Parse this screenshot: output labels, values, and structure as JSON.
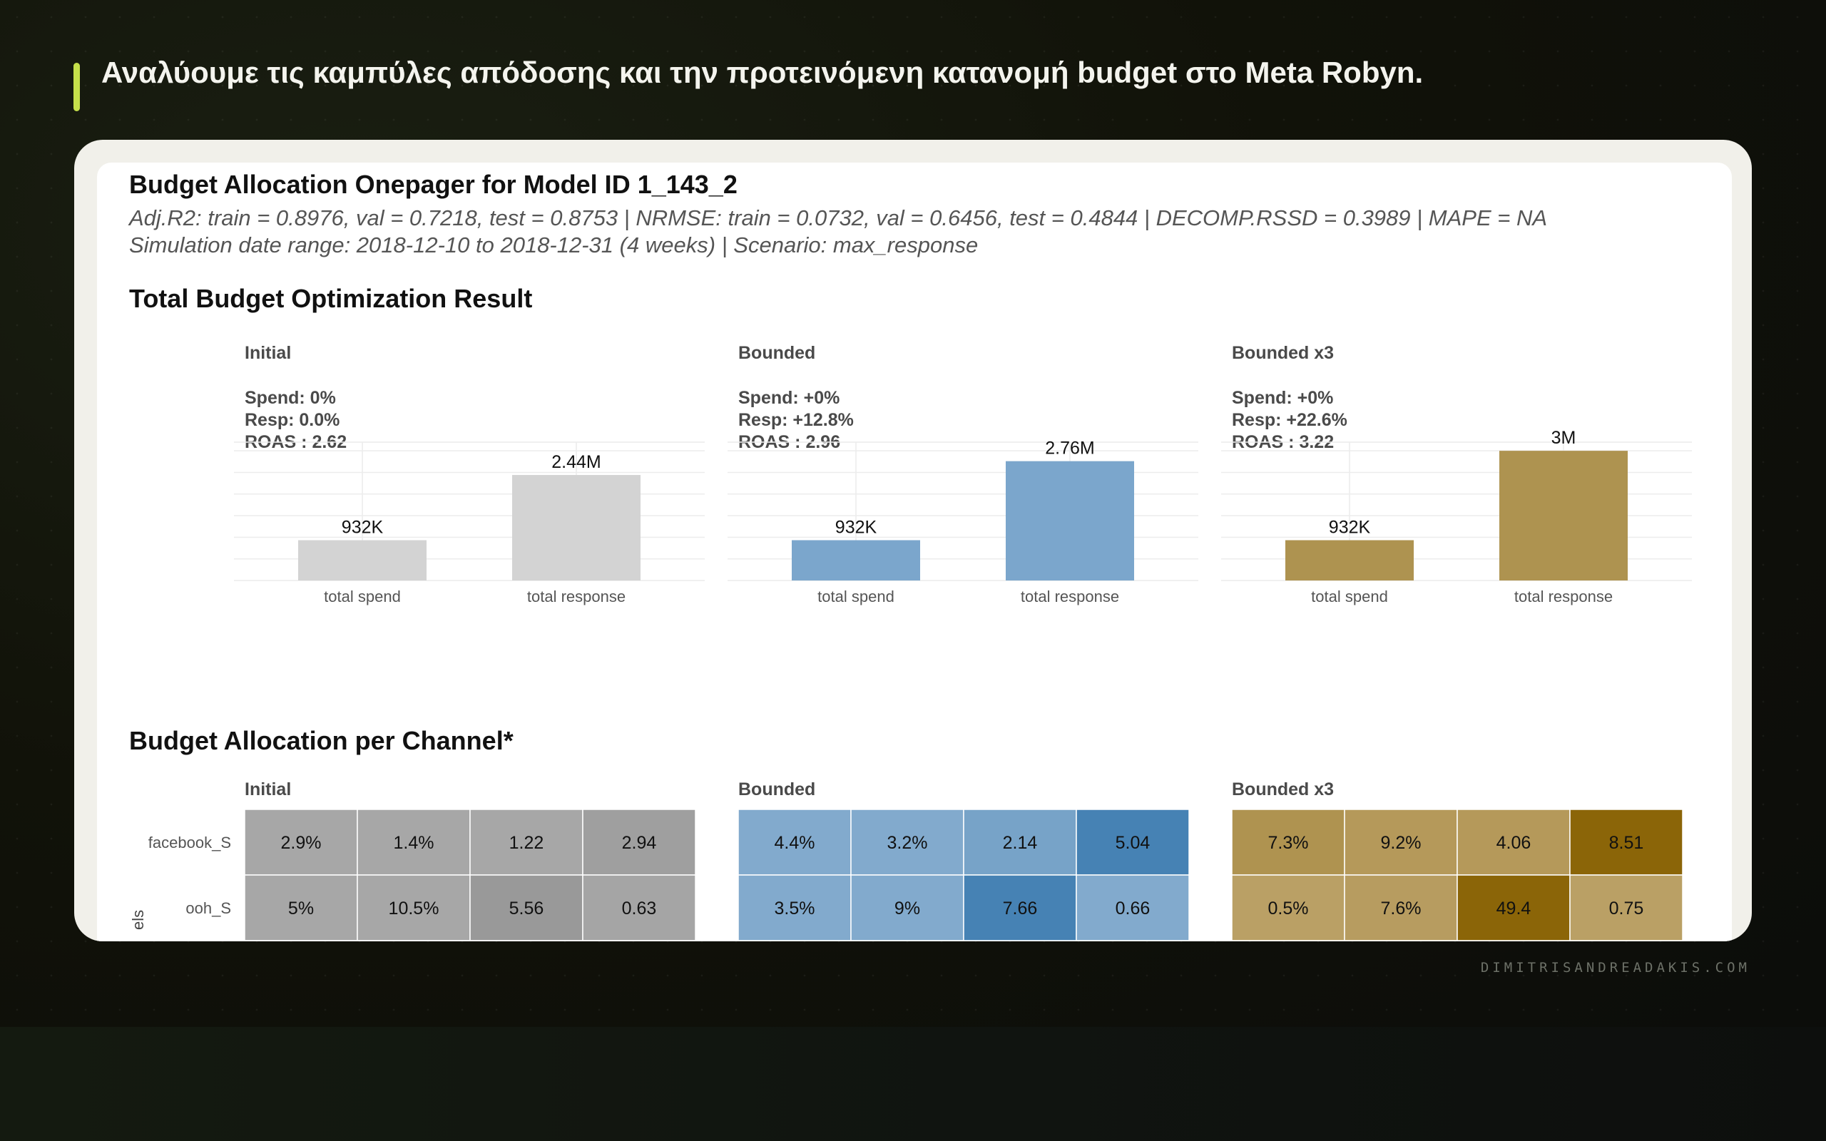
{
  "headline": "Αναλύουμε τις καμπύλες απόδοσης και την προτεινόμενη κατανομή budget στο Meta Robyn.",
  "footer": "DIMITRISANDREADAKIS.COM",
  "colors": {
    "accent": "#c5e04a",
    "initial": "#d3d3d3",
    "bounded": "#7ba6cc",
    "bounded_x3": "#ae9350"
  },
  "onepager": {
    "title": "Budget Allocation Onepager for Model ID 1_143_2",
    "subtitle_1": "Adj.R2: train = 0.8976, val = 0.7218, test = 0.8753 | NRMSE: train = 0.0732, val = 0.6456, test = 0.4844 | DECOMP.RSSD = 0.3989 | MAPE = NA",
    "subtitle_2": "Simulation date range: 2018-12-10 to 2018-12-31 (4 weeks) | Scenario: max_response",
    "section_1": "Total Budget Optimization Result",
    "section_2": "Budget Allocation per Channel*",
    "y_axis_fragment": "els"
  },
  "chart_data": [
    {
      "type": "bar",
      "title": "Total Budget Optimization Result",
      "categories": [
        "total spend",
        "total response"
      ],
      "ylim": [
        0,
        3200000
      ],
      "grid": true,
      "panels": [
        {
          "name": "Initial",
          "values": [
            932000,
            2440000
          ],
          "labels": [
            "932K",
            "2.44M"
          ],
          "stats": [
            "Spend: 0%",
            "Resp: 0.0%",
            "ROAS : 2.62"
          ],
          "color": "#d3d3d3"
        },
        {
          "name": "Bounded",
          "values": [
            932000,
            2760000
          ],
          "labels": [
            "932K",
            "2.76M"
          ],
          "stats": [
            "Spend: +0%",
            "Resp: +12.8%",
            "ROAS : 2.96"
          ],
          "color": "#7ba6cc"
        },
        {
          "name": "Bounded x3",
          "values": [
            932000,
            3000000
          ],
          "labels": [
            "932K",
            "3M"
          ],
          "stats": [
            "Spend: +0%",
            "Resp: +22.6%",
            "ROAS : 3.22"
          ],
          "color": "#ae9350"
        }
      ]
    },
    {
      "type": "heatmap",
      "title": "Budget Allocation per Channel*",
      "rows": [
        "facebook_S",
        "ooh_S"
      ],
      "panels": [
        {
          "name": "Initial",
          "cells": [
            [
              "2.9%",
              "1.4%",
              "1.22",
              "2.94"
            ],
            [
              "5%",
              "10.5%",
              "5.56",
              "0.63"
            ]
          ],
          "shades": [
            [
              0.35,
              0.35,
              0.35,
              0.55
            ],
            [
              0.35,
              0.35,
              0.7,
              0.4
            ]
          ],
          "light": "#b4b4b4",
          "dark": "#8e8e8e"
        },
        {
          "name": "Bounded",
          "cells": [
            [
              "4.4%",
              "3.2%",
              "2.14",
              "5.04"
            ],
            [
              "3.5%",
              "9%",
              "7.66",
              "0.66"
            ]
          ],
          "shades": [
            [
              0.2,
              0.2,
              0.35,
              1.0
            ],
            [
              0.2,
              0.2,
              1.0,
              0.2
            ]
          ],
          "light": "#91b4d3",
          "dark": "#4682b4"
        },
        {
          "name": "Bounded x3",
          "cells": [
            [
              "7.3%",
              "9.2%",
              "4.06",
              "8.51"
            ],
            [
              "0.5%",
              "7.6%",
              "49.4",
              "0.75"
            ]
          ],
          "shades": [
            [
              0.3,
              0.2,
              0.2,
              1.0
            ],
            [
              0.1,
              0.15,
              1.0,
              0.1
            ]
          ],
          "light": "#bfa66f",
          "dark": "#8b6508"
        }
      ]
    }
  ]
}
